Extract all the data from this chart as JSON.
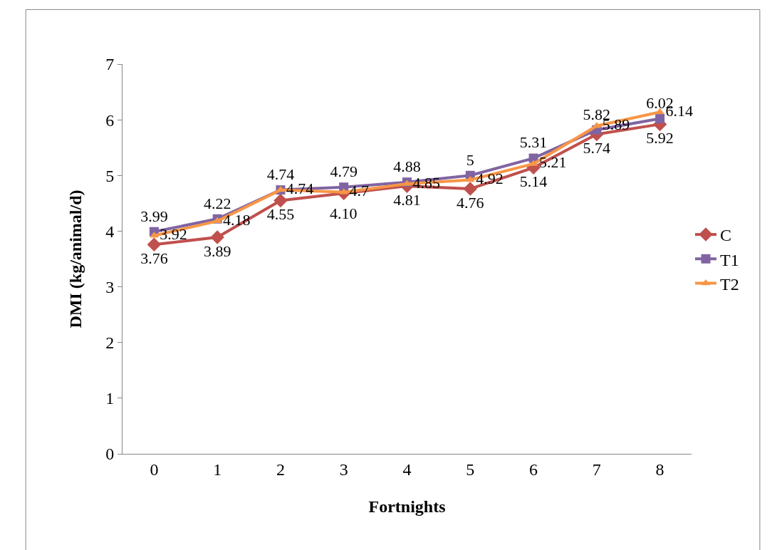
{
  "chart_data": {
    "type": "line",
    "xlabel": "Fortnights",
    "ylabel": "DMI (kg/animal/d)",
    "categories": [
      "0",
      "1",
      "2",
      "3",
      "4",
      "5",
      "6",
      "7",
      "8"
    ],
    "ylim": [
      0,
      7
    ],
    "yticks": [
      0,
      1,
      2,
      3,
      4,
      5,
      6,
      7
    ],
    "grid": false,
    "legend": "right",
    "annotations": [
      {
        "text": "4.10",
        "x": "3",
        "y": 4.68
      }
    ],
    "series": [
      {
        "name": "C",
        "color": "#c0504d",
        "marker": "diamond",
        "values": [
          3.76,
          3.89,
          4.55,
          4.68,
          4.81,
          4.76,
          5.14,
          5.74,
          5.92
        ],
        "value_labels": [
          "3.76",
          "3.89",
          "4.55",
          null,
          "4.81",
          "4.76",
          "5.14",
          "5.74",
          "5.92"
        ]
      },
      {
        "name": "T1",
        "color": "#8064a2",
        "marker": "square",
        "values": [
          3.99,
          4.22,
          4.74,
          4.79,
          4.88,
          5,
          5.31,
          5.82,
          6.02
        ],
        "value_labels": [
          "3.99",
          "4.22",
          "4.74",
          "4.79",
          "4.88",
          "5",
          "5.31",
          "5.82",
          "6.02"
        ]
      },
      {
        "name": "T2",
        "color": "#f79646",
        "marker": "triangle",
        "values": [
          3.92,
          4.18,
          4.74,
          4.7,
          4.85,
          4.92,
          5.21,
          5.89,
          6.14
        ],
        "value_labels": [
          "3.92",
          "4.18",
          "4.74",
          "4.7",
          "4.85",
          "4.92",
          "5.21",
          "5.89",
          "6.14"
        ]
      }
    ]
  }
}
